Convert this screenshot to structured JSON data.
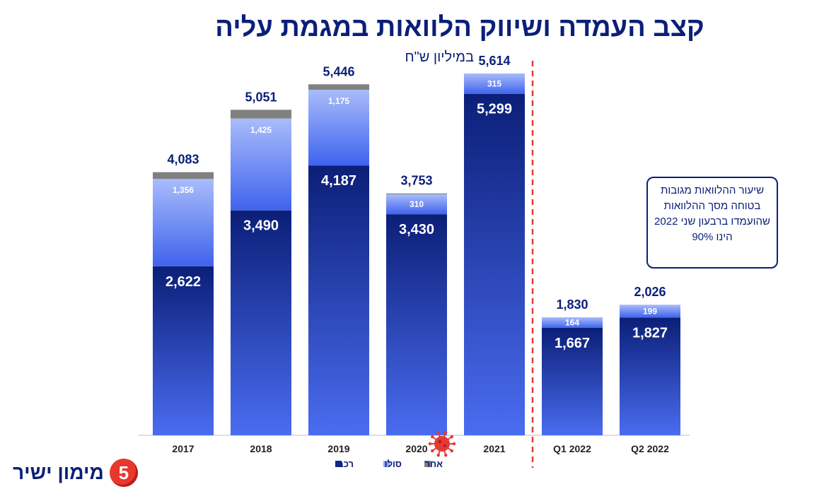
{
  "header": {
    "title": "קצב העמדה ושיווק הלוואות במגמת עליה",
    "subtitle": "במיליון ש\"ח"
  },
  "callout": {
    "text": "שיעור ההלוואות מגובות בטוחה מסך ההלוואות שהועמדו ברבעון שני 2022 הינו 90%"
  },
  "logo": {
    "text": "מימון ישיר",
    "badge": "5"
  },
  "colors": {
    "car": "#0d2a8e",
    "solo": "#8fa8f7",
    "other": "#808080",
    "title": "#0b1f78",
    "divider": "#e53935",
    "virus": "#e53935"
  },
  "icons": [
    "virus-icon",
    "logo-badge-icon"
  ],
  "chart_data": {
    "type": "bar",
    "stacked": true,
    "categories": [
      "2017",
      "2018",
      "2019",
      "2020",
      "2021",
      "Q1 2022",
      "Q2 2022"
    ],
    "series": [
      {
        "name": "רכב",
        "values": [
          2622,
          3490,
          4187,
          3430,
          5299,
          1667,
          1827
        ],
        "labels": [
          "2,622",
          "3,490",
          "4,187",
          "3,430",
          "5,299",
          "1,667",
          "1,827"
        ]
      },
      {
        "name": "סולו",
        "values": [
          1356,
          1425,
          1175,
          310,
          315,
          164,
          199
        ],
        "labels": [
          "1,356",
          "1,425",
          "1,175",
          "310",
          "315",
          "164",
          "199"
        ]
      },
      {
        "name": "אחר",
        "values": [
          105,
          136,
          84,
          13,
          0,
          0,
          0
        ]
      }
    ],
    "totals": [
      "4,083",
      "5,051",
      "5,446",
      "3,753",
      "5,614",
      "1,830",
      "2,026"
    ],
    "legend_position": "bottom",
    "divider_after_category": "2021",
    "grid": false,
    "annotation": "covid icon at 2020"
  }
}
